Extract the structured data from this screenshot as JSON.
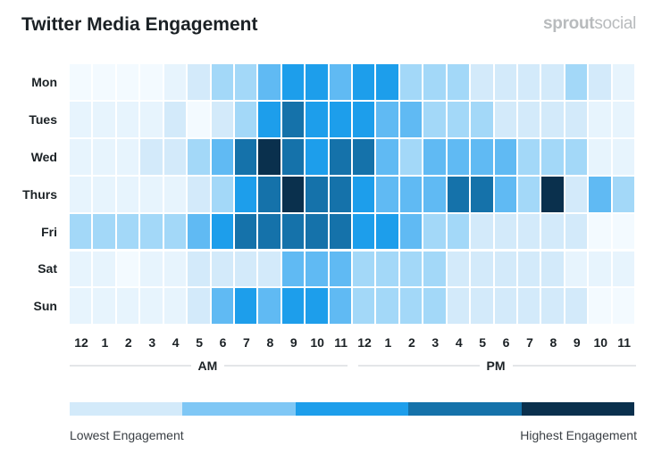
{
  "chart_data": {
    "type": "heatmap",
    "title": "Twitter Media Engagement",
    "rows": [
      "Mon",
      "Tues",
      "Wed",
      "Thurs",
      "Fri",
      "Sat",
      "Sun"
    ],
    "columns": [
      "12",
      "1",
      "2",
      "3",
      "4",
      "5",
      "6",
      "7",
      "8",
      "9",
      "10",
      "11",
      "12",
      "1",
      "2",
      "3",
      "4",
      "5",
      "6",
      "7",
      "8",
      "9",
      "10",
      "11"
    ],
    "column_groups": [
      {
        "label": "AM",
        "span": 12
      },
      {
        "label": "PM",
        "span": 12
      }
    ],
    "value_scale": "engagement level 0 (lowest) to 7 (highest)",
    "values": [
      [
        0,
        0,
        0,
        0,
        1,
        2,
        3,
        3,
        4,
        5,
        5,
        4,
        5,
        5,
        3,
        3,
        3,
        2,
        2,
        2,
        2,
        3,
        2,
        1
      ],
      [
        1,
        1,
        1,
        1,
        2,
        0,
        2,
        3,
        5,
        6,
        5,
        5,
        5,
        4,
        4,
        3,
        3,
        3,
        2,
        2,
        2,
        2,
        1,
        1
      ],
      [
        1,
        1,
        1,
        2,
        2,
        3,
        4,
        6,
        7,
        6,
        5,
        6,
        6,
        4,
        3,
        4,
        4,
        4,
        4,
        3,
        3,
        3,
        1,
        1
      ],
      [
        1,
        1,
        1,
        1,
        1,
        2,
        3,
        5,
        6,
        7,
        6,
        6,
        5,
        4,
        4,
        4,
        6,
        6,
        4,
        3,
        7,
        2,
        4,
        3
      ],
      [
        3,
        3,
        3,
        3,
        3,
        4,
        5,
        6,
        6,
        6,
        6,
        6,
        5,
        5,
        4,
        3,
        3,
        2,
        2,
        2,
        2,
        2,
        0,
        0
      ],
      [
        1,
        1,
        0,
        1,
        1,
        2,
        2,
        2,
        2,
        4,
        4,
        4,
        3,
        3,
        3,
        3,
        2,
        2,
        2,
        2,
        2,
        1,
        1,
        1
      ],
      [
        1,
        1,
        1,
        1,
        1,
        2,
        4,
        5,
        4,
        5,
        5,
        4,
        3,
        3,
        3,
        3,
        2,
        2,
        2,
        2,
        2,
        2,
        0,
        0
      ]
    ],
    "palette": [
      "#f3faff",
      "#e7f4fd",
      "#d3eafa",
      "#a3d8f8",
      "#60baf3",
      "#1d9eeb",
      "#1572aa",
      "#0a304d"
    ],
    "legend": {
      "colors": [
        "#d3eafa",
        "#7fc7f5",
        "#1d9eeb",
        "#1572aa",
        "#0a304d"
      ],
      "low_label": "Lowest Engagement",
      "high_label": "Highest Engagement"
    }
  },
  "brand": {
    "logo_bold": "sprout",
    "logo_light": "social"
  }
}
